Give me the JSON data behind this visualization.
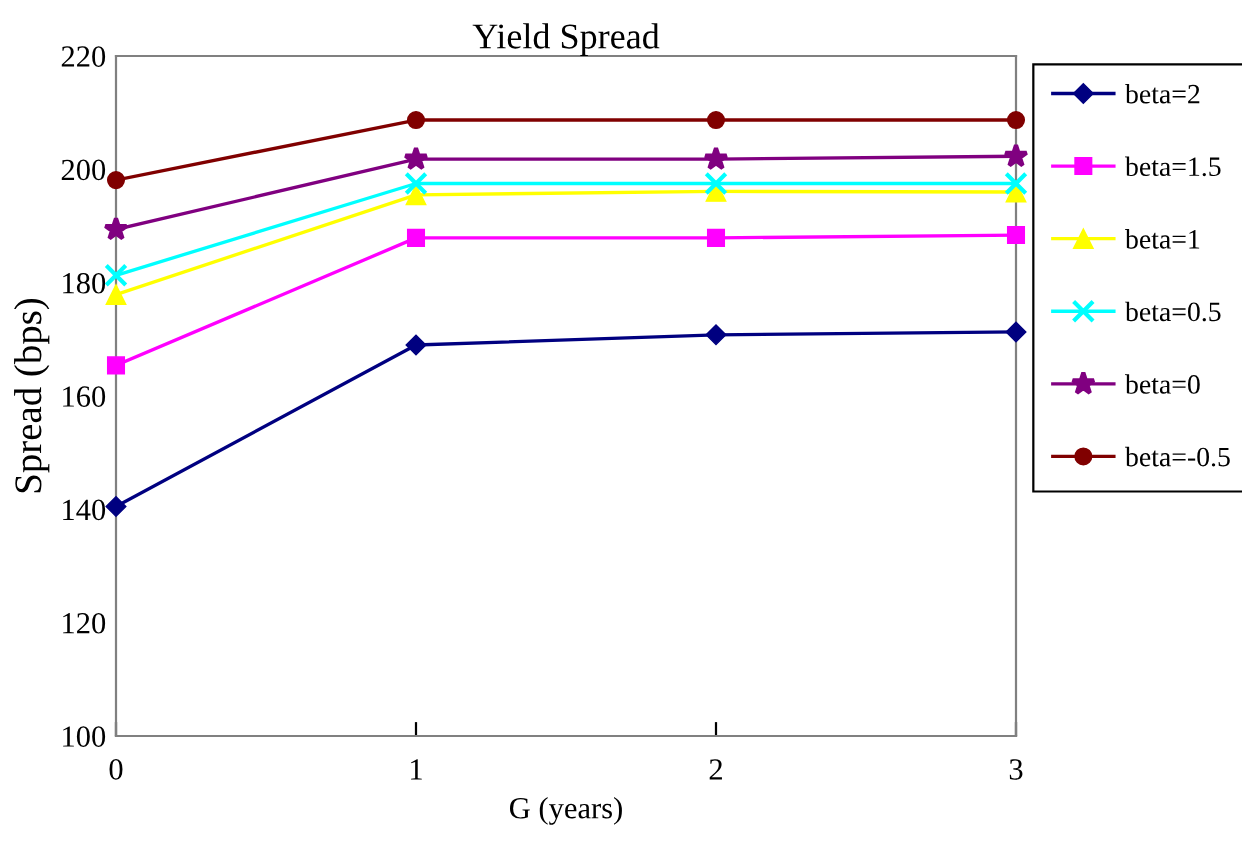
{
  "chart_data": {
    "type": "line",
    "title": "Yield Spread",
    "xlabel": "G (years)",
    "ylabel": "Spread (bps)",
    "x": [
      0,
      1,
      2,
      3
    ],
    "xlim": [
      0,
      3
    ],
    "xticks": [
      0,
      1,
      2,
      3
    ],
    "ylim": [
      100,
      220
    ],
    "yticks": [
      100,
      120,
      140,
      160,
      180,
      200,
      220
    ],
    "grid": false,
    "legend": "right",
    "line_style": "solid",
    "series": [
      {
        "name": "beta=2",
        "color": "#000080",
        "marker": "diamond",
        "values": [
          140.5,
          169,
          170.8,
          171.3
        ]
      },
      {
        "name": "beta=1.5",
        "color": "#ff00ff",
        "marker": "square",
        "values": [
          165.4,
          187.9,
          187.9,
          188.4
        ]
      },
      {
        "name": "beta=1",
        "color": "#ffff00",
        "marker": "triangle",
        "values": [
          177.9,
          195.5,
          196.1,
          196
        ]
      },
      {
        "name": "beta=0.5",
        "color": "#00ffff",
        "marker": "cross",
        "values": [
          181.3,
          197.5,
          197.5,
          197.5
        ]
      },
      {
        "name": "beta=0",
        "color": "#800080",
        "marker": "star",
        "values": [
          189.4,
          201.8,
          201.8,
          202.3
        ]
      },
      {
        "name": "beta=-0.5",
        "color": "#800000",
        "marker": "circle",
        "values": [
          198.1,
          208.7,
          208.7,
          208.7
        ]
      }
    ]
  }
}
